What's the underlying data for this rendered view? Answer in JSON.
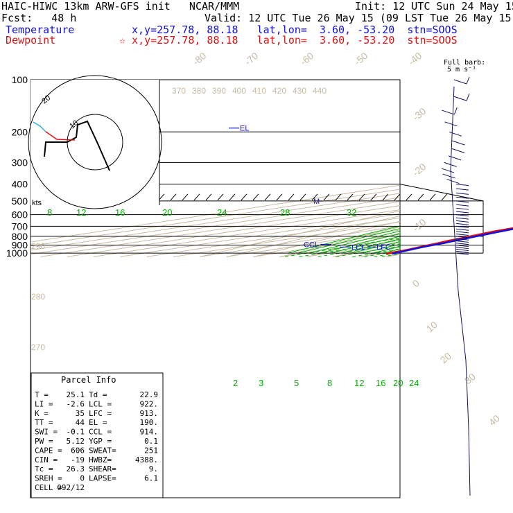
{
  "header": {
    "title": "HAIC-HIWC 13km ARW-GFS init   NCAR/MMM",
    "init": "Init: 12 UTC Sun 24 May 15",
    "fcst": "Fcst:   48 h",
    "valid": "Valid: 12 UTC Tue 26 May 15 (09 LST Tue 26 May 15)",
    "temperature_label": "Temperature",
    "temperature_info": "x,y=257.78, 88.18   lat,lon=  3.60, -53.20  stn=SOOS",
    "dewpoint_label": "Dewpoint",
    "dewpoint_info": "☆ x,y=257.78, 88.18   lat,lon=  3.60, -53.20  stn=SOOS",
    "barb_label_1": "Full barb:",
    "barb_label_2": "5 m s⁻¹"
  },
  "colors": {
    "temperature": "#1010e0",
    "dewpoint": "#e01010",
    "isotherm": "#c8b8a0",
    "mixing_ratio": "#00b000",
    "grid": "#000000"
  },
  "chart_data": {
    "type": "skew-t",
    "pressure_levels": [
      100,
      200,
      300,
      400,
      500,
      600,
      700,
      800,
      900,
      1000
    ],
    "isotherm_labels": [
      "-80",
      "-70",
      "-60",
      "-50",
      "-40",
      "-30",
      "-20",
      "-10",
      "0",
      "10",
      "20",
      "30",
      "40"
    ],
    "theta_labels_top": [
      "370",
      "380",
      "390",
      "400",
      "410",
      "420",
      "430",
      "440"
    ],
    "theta_labels_left": [
      "290",
      "280",
      "270"
    ],
    "theta_e_labels": [
      "8",
      "12",
      "16",
      "20",
      "24",
      "28",
      "32"
    ],
    "mixing_ratio_labels": [
      "2",
      "3",
      "5",
      "8",
      "12",
      "16",
      "20",
      "24"
    ],
    "hodograph": {
      "unit": "kts",
      "ring_labels": [
        "10",
        "20"
      ]
    },
    "temperature_profile": [
      [
        1010,
        25.1
      ],
      [
        1000,
        24.6
      ],
      [
        975,
        23.1
      ],
      [
        950,
        21.5
      ],
      [
        925,
        20.2
      ],
      [
        900,
        19.2
      ],
      [
        875,
        18.3
      ],
      [
        850,
        16.8
      ],
      [
        800,
        14.0
      ],
      [
        750,
        11.2
      ],
      [
        700,
        8.6
      ],
      [
        650,
        5.2
      ],
      [
        600,
        1.9
      ],
      [
        550,
        -1.8
      ],
      [
        500,
        -6.0
      ],
      [
        450,
        -10.6
      ],
      [
        400,
        -16.4
      ],
      [
        350,
        -23.0
      ],
      [
        300,
        -31.1
      ],
      [
        250,
        -41.0
      ],
      [
        200,
        -53.0
      ],
      [
        175,
        -59.5
      ],
      [
        150,
        -67.0
      ],
      [
        125,
        -75.0
      ],
      [
        110,
        -79.5
      ],
      [
        100,
        -79.0
      ]
    ],
    "dewpoint_profile": [
      [
        1010,
        22.9
      ],
      [
        1000,
        22.4
      ],
      [
        975,
        21.7
      ],
      [
        950,
        20.5
      ],
      [
        925,
        19.0
      ],
      [
        900,
        17.5
      ],
      [
        875,
        16.2
      ],
      [
        850,
        14.3
      ],
      [
        825,
        13.4
      ],
      [
        800,
        11.7
      ],
      [
        750,
        8.6
      ],
      [
        700,
        7.2
      ],
      [
        650,
        1.5
      ],
      [
        600,
        -3.2
      ],
      [
        550,
        -7.6
      ],
      [
        500,
        -12.6
      ],
      [
        450,
        -15.9
      ],
      [
        420,
        -18.5
      ],
      [
        400,
        -20.4
      ],
      [
        370,
        -29.0
      ],
      [
        350,
        -48.0
      ],
      [
        330,
        -47.5
      ],
      [
        310,
        -45.0
      ],
      [
        295,
        -42.6
      ],
      [
        270,
        -52.0
      ],
      [
        250,
        -56.5
      ],
      [
        230,
        -65.0
      ],
      [
        200,
        -72.0
      ],
      [
        180,
        -75.5
      ],
      [
        150,
        -80.5
      ],
      [
        120,
        -82.0
      ],
      [
        100,
        -83.0
      ]
    ],
    "markers": [
      {
        "label": "EL",
        "pressure": 190
      },
      {
        "label": "M",
        "pressure": 500
      },
      {
        "label": "CCL",
        "pressure": 914
      },
      {
        "label": "LCL",
        "pressure": 922
      },
      {
        "label": "LFC",
        "pressure": 913
      }
    ],
    "parcel_info": {
      "title": "Parcel Info",
      "rows": [
        [
          "T  =",
          "25.1",
          "Td =",
          "22.9"
        ],
        [
          "LI =",
          "-2.6",
          "LCL =",
          "922."
        ],
        [
          "K  =",
          "35",
          "LFC =",
          "913."
        ],
        [
          "TT =",
          "44",
          "EL  =",
          "190."
        ],
        [
          "SWI =",
          "-0.1",
          "CCL =",
          "914."
        ],
        [
          "PW =",
          "5.12",
          "YGP =",
          "0.1"
        ],
        [
          "CAPE =",
          "606",
          "SWEAT=",
          "251"
        ],
        [
          "CIN =",
          "-19",
          "HWBZ=",
          "4388."
        ],
        [
          "Tc =",
          "26.3",
          "SHEAR=",
          "9."
        ],
        [
          "SREH =",
          "0",
          "LAPSE=",
          "6.1"
        ],
        [
          "CELL =",
          "092/12",
          "",
          ""
        ]
      ]
    }
  }
}
